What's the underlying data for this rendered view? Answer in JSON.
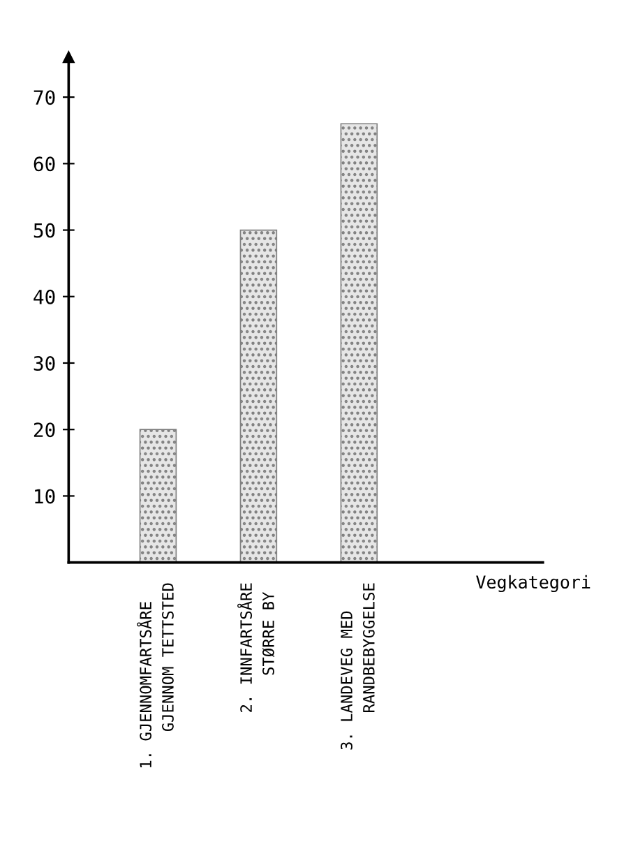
{
  "chart_data": {
    "type": "bar",
    "xlabel": "Vegkategori",
    "categories": [
      "1. GJENNOMFARTSÅRE\n    GJENNOM TETTSTED",
      "2. INNFARTSÅRE\n    STØRRE BY",
      "3. LANDEVEG MED\n    RANDBEBYGGELSE"
    ],
    "values": [
      20,
      50,
      66
    ],
    "color": "#808080",
    "ylim": [
      0,
      76
    ],
    "yticks": [
      10,
      20,
      30,
      40,
      50,
      60,
      70
    ],
    "grid": false
  }
}
